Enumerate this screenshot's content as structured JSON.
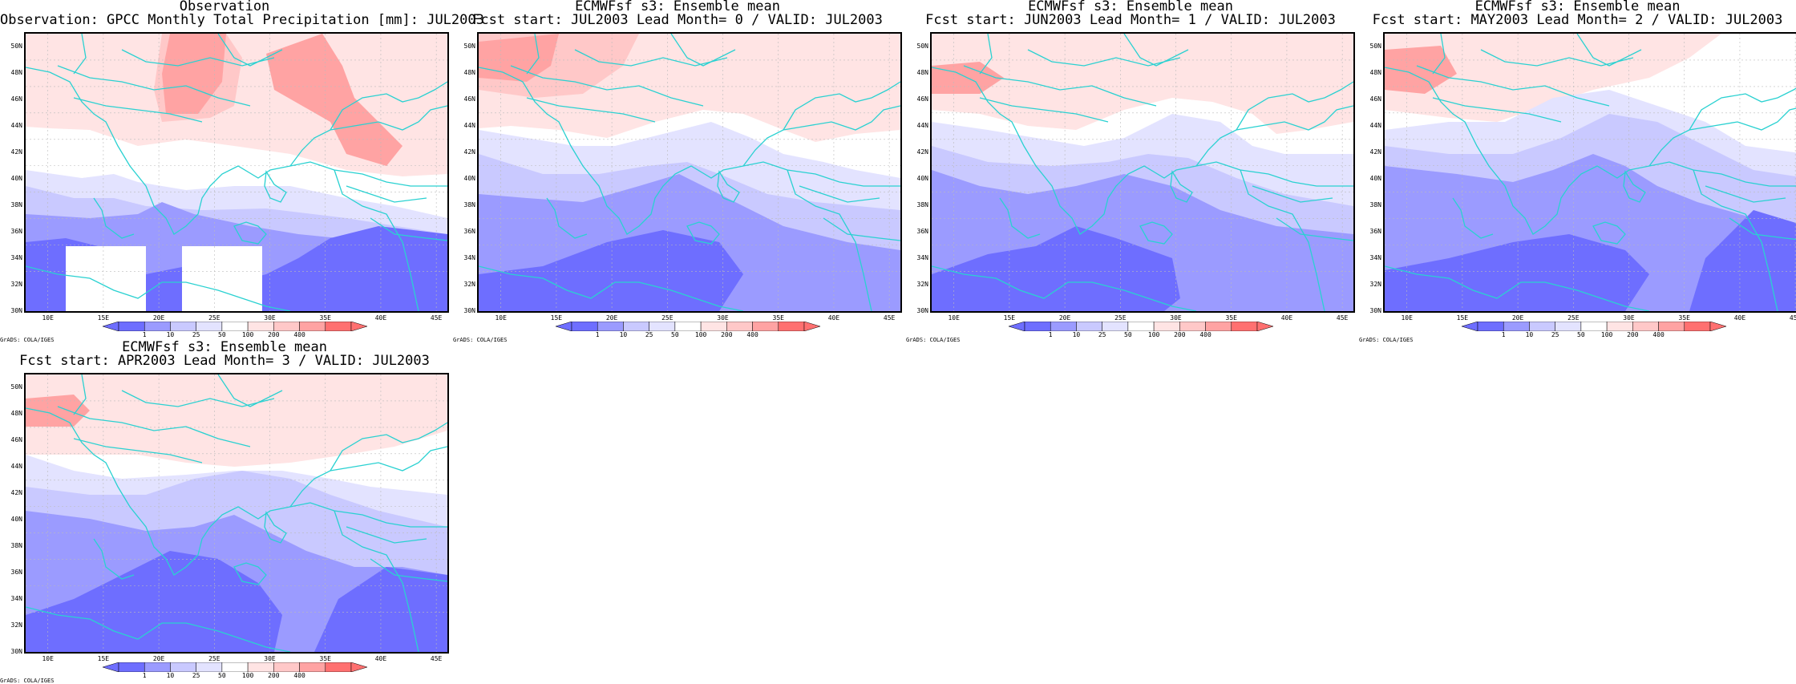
{
  "colors": {
    "levels": [
      "#6e6eff",
      "#9b9bff",
      "#c9c9ff",
      "#e3e3ff",
      "#ffffff",
      "#ffe4e4",
      "#ffc8c8",
      "#ffa3a3",
      "#ff7070"
    ],
    "coast": "#2ad1d1",
    "grid": "#bbbbbb"
  },
  "axes": {
    "lat_labels": [
      "50N",
      "48N",
      "46N",
      "44N",
      "42N",
      "40N",
      "38N",
      "36N",
      "34N",
      "32N",
      "30N"
    ],
    "lon_labels": [
      "10E",
      "15E",
      "20E",
      "25E",
      "30E",
      "35E",
      "40E",
      "45E"
    ],
    "lat_range": [
      30,
      51
    ],
    "lon_range": [
      8,
      46
    ]
  },
  "colorbar": {
    "labels": [
      "1",
      "10",
      "25",
      "50",
      "100",
      "200",
      "400"
    ]
  },
  "credit": "GrADS: COLA/IGES",
  "panels": [
    {
      "id": "observation",
      "title_line1": "Observation",
      "title_line2": "Observation: GPCC Monthly Total Precipitation [mm]: JUL2003",
      "pattern": "obs"
    },
    {
      "id": "lead0",
      "title_line1": "ECMWFsf s3: Ensemble mean",
      "title_line2": "Fcst start: JUL2003  Lead Month= 0 / VALID: JUL2003",
      "pattern": "lead0"
    },
    {
      "id": "lead1",
      "title_line1": "ECMWFsf s3: Ensemble mean",
      "title_line2": "Fcst start: JUN2003  Lead Month= 1 / VALID: JUL2003",
      "pattern": "lead1"
    },
    {
      "id": "lead2",
      "title_line1": "ECMWFsf s3: Ensemble mean",
      "title_line2": "Fcst start: MAY2003  Lead Month= 2 / VALID: JUL2003",
      "pattern": "lead2"
    },
    {
      "id": "lead3",
      "title_line1": "ECMWFsf s3: Ensemble mean",
      "title_line2": "Fcst start: APR2003  Lead Month= 3 / VALID: JUL2003",
      "pattern": "lead3"
    }
  ]
}
